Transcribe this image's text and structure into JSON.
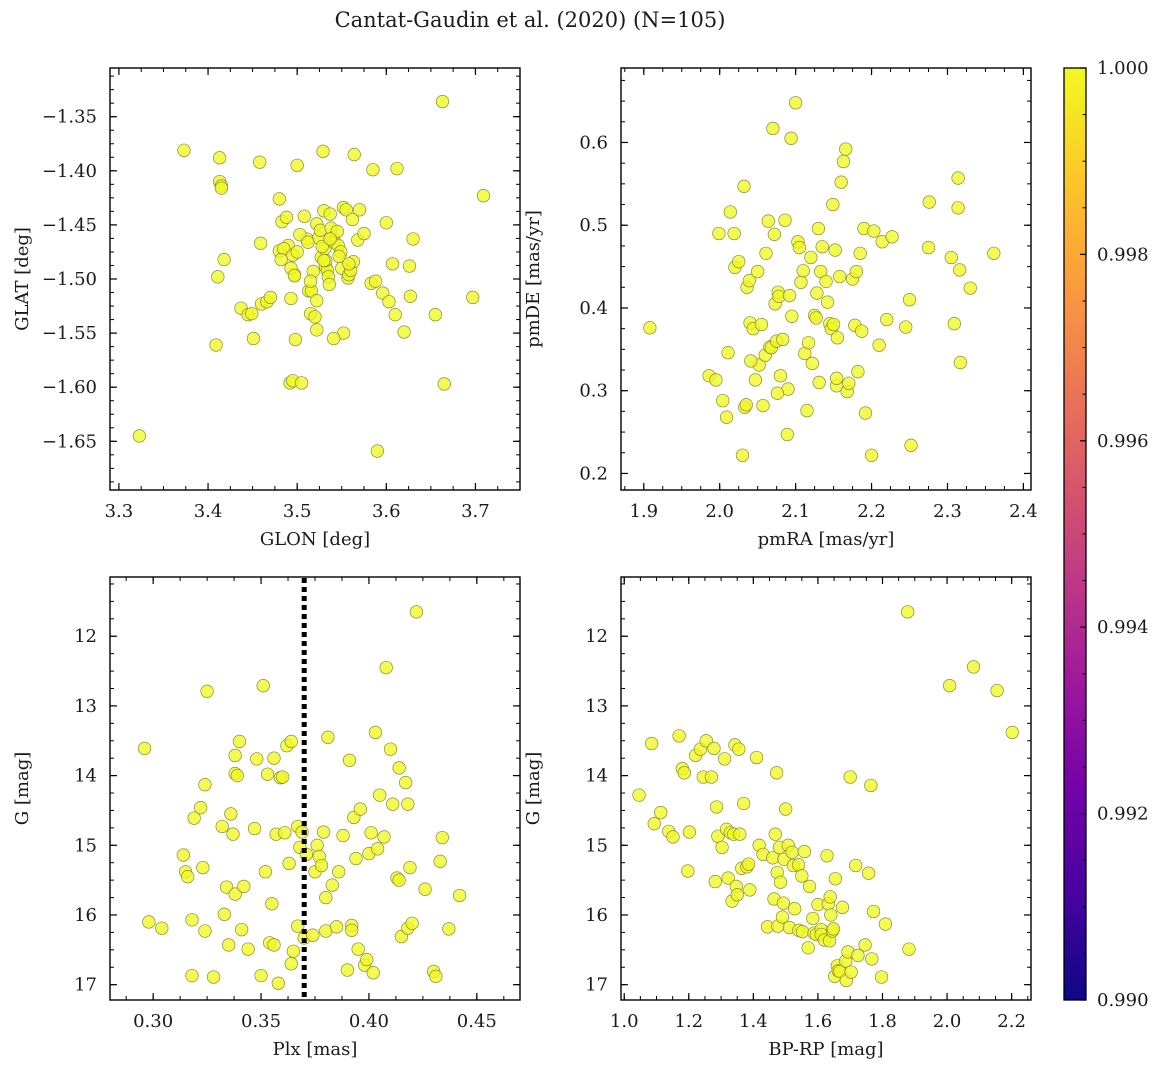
{
  "figure": {
    "title": "Cantat-Gaudin et al. (2020) (N=105)"
  },
  "colors": {
    "point_fill": "#f0f921",
    "point_edge": "#8a8a3a",
    "axis": "#000000",
    "vline": "#000000",
    "colormap": [
      "#0d0887",
      "#46039f",
      "#7201a8",
      "#9c179e",
      "#bd3786",
      "#d8576b",
      "#ed7953",
      "#fb9f3a",
      "#fdca26",
      "#f0f921"
    ]
  },
  "colorbar": {
    "range": [
      0.99,
      1.0
    ],
    "ticks": [
      0.99,
      0.992,
      0.994,
      0.996,
      0.998,
      1.0
    ],
    "tick_labels": [
      "0.990",
      "0.992",
      "0.994",
      "0.996",
      "0.998",
      "1.000"
    ]
  },
  "chart_data": [
    {
      "type": "scatter",
      "id": "glon_glat",
      "xlabel": "GLON [deg]",
      "ylabel": "GLAT [deg]",
      "xlim": [
        3.29,
        3.75
      ],
      "ylim": [
        -1.695,
        -1.305
      ],
      "xticks": [
        3.3,
        3.4,
        3.5,
        3.6,
        3.7
      ],
      "xtick_labels": [
        "3.3",
        "3.4",
        "3.5",
        "3.6",
        "3.7"
      ],
      "yticks": [
        -1.35,
        -1.4,
        -1.45,
        -1.5,
        -1.55,
        -1.6,
        -1.65
      ],
      "ytick_labels": [
        "−1.35",
        "−1.40",
        "−1.45",
        "−1.50",
        "−1.55",
        "−1.60",
        "−1.65"
      ],
      "x": [
        3.323,
        3.373,
        3.413,
        3.413,
        3.415,
        3.415,
        3.411,
        3.409,
        3.418,
        3.458,
        3.459,
        3.437,
        3.445,
        3.451,
        3.449,
        3.46,
        3.466,
        3.47,
        3.48,
        3.483,
        3.48,
        3.488,
        3.49,
        3.485,
        3.495,
        3.497,
        3.5,
        3.493,
        3.492,
        3.495,
        3.498,
        3.5,
        3.482,
        3.493,
        3.508,
        3.511,
        3.513,
        3.516,
        3.515,
        3.52,
        3.522,
        3.522,
        3.524,
        3.526,
        3.527,
        3.529,
        3.53,
        3.531,
        3.532,
        3.534,
        3.535,
        3.536,
        3.537,
        3.538,
        3.54,
        3.541,
        3.545,
        3.546,
        3.549,
        3.55,
        3.552,
        3.555,
        3.557,
        3.558,
        3.56,
        3.562,
        3.564,
        3.568,
        3.57,
        3.575,
        3.583,
        3.585,
        3.588,
        3.59,
        3.596,
        3.6,
        3.603,
        3.607,
        3.61,
        3.612,
        3.62,
        3.626,
        3.627,
        3.63,
        3.655,
        3.663,
        3.665,
        3.697,
        3.709,
        3.522,
        3.505,
        3.532,
        3.518,
        3.528,
        3.552,
        3.541,
        3.537,
        3.547,
        3.563,
        3.497,
        3.515,
        3.53,
        3.558,
        3.503,
        3.512
      ],
      "y": [
        -1.645,
        -1.381,
        -1.388,
        -1.41,
        -1.414,
        -1.416,
        -1.498,
        -1.561,
        -1.482,
        -1.392,
        -1.467,
        -1.527,
        -1.533,
        -1.555,
        -1.532,
        -1.523,
        -1.521,
        -1.517,
        -1.426,
        -1.447,
        -1.474,
        -1.443,
        -1.469,
        -1.472,
        -1.478,
        -1.496,
        -1.475,
        -1.518,
        -1.596,
        -1.594,
        -1.556,
        -1.395,
        -1.482,
        -1.49,
        -1.442,
        -1.463,
        -1.511,
        -1.511,
        -1.532,
        -1.535,
        -1.52,
        -1.449,
        -1.462,
        -1.455,
        -1.48,
        -1.382,
        -1.437,
        -1.472,
        -1.489,
        -1.492,
        -1.498,
        -1.505,
        -1.44,
        -1.453,
        -1.462,
        -1.466,
        -1.456,
        -1.469,
        -1.475,
        -1.49,
        -1.434,
        -1.436,
        -1.499,
        -1.496,
        -1.492,
        -1.445,
        -1.385,
        -1.464,
        -1.436,
        -1.458,
        -1.504,
        -1.399,
        -1.502,
        -1.659,
        -1.513,
        -1.448,
        -1.521,
        -1.486,
        -1.533,
        -1.398,
        -1.549,
        -1.488,
        -1.516,
        -1.463,
        -1.533,
        -1.336,
        -1.597,
        -1.517,
        -1.423,
        -1.547,
        -1.596,
        -1.483,
        -1.493,
        -1.47,
        -1.55,
        -1.555,
        -1.463,
        -1.479,
        -1.484,
        -1.497,
        -1.502,
        -1.483,
        -1.486,
        -1.459,
        -1.466
      ]
    },
    {
      "type": "scatter",
      "id": "pmra_pmde",
      "xlabel": "pmRA [mas/yr]",
      "ylabel": "pmDE [mas/yr]",
      "xlim": [
        1.87,
        2.41
      ],
      "ylim": [
        0.18,
        0.69
      ],
      "xticks": [
        1.9,
        2.0,
        2.1,
        2.2,
        2.3,
        2.4
      ],
      "xtick_labels": [
        "1.9",
        "2.0",
        "2.1",
        "2.2",
        "2.3",
        "2.4"
      ],
      "yticks": [
        0.2,
        0.3,
        0.4,
        0.5,
        0.6
      ],
      "ytick_labels": [
        "0.2",
        "0.3",
        "0.4",
        "0.5",
        "0.6"
      ],
      "x": [
        1.908,
        1.986,
        1.995,
        1.999,
        2.004,
        2.011,
        2.009,
        2.014,
        2.019,
        2.02,
        2.025,
        2.03,
        2.032,
        2.033,
        2.035,
        2.036,
        2.039,
        2.04,
        2.044,
        2.047,
        2.05,
        2.052,
        2.055,
        2.057,
        2.06,
        2.061,
        2.064,
        2.066,
        2.068,
        2.07,
        2.072,
        2.073,
        2.075,
        2.077,
        2.078,
        2.08,
        2.083,
        2.086,
        2.089,
        2.09,
        2.092,
        2.095,
        2.1,
        2.103,
        2.105,
        2.107,
        2.11,
        2.112,
        2.115,
        2.117,
        2.12,
        2.122,
        2.125,
        2.128,
        2.13,
        2.131,
        2.133,
        2.135,
        2.14,
        2.142,
        2.145,
        2.147,
        2.149,
        2.15,
        2.152,
        2.154,
        2.155,
        2.158,
        2.16,
        2.163,
        2.166,
        2.168,
        2.17,
        2.175,
        2.178,
        2.18,
        2.182,
        2.185,
        2.187,
        2.19,
        2.192,
        2.2,
        2.203,
        2.21,
        2.214,
        2.22,
        2.227,
        2.245,
        2.25,
        2.252,
        2.275,
        2.276,
        2.305,
        2.309,
        2.314,
        2.316,
        2.317,
        2.314,
        2.33,
        2.361,
        2.127,
        2.094,
        2.076,
        2.154,
        2.041
      ],
      "y": [
        0.376,
        0.318,
        0.313,
        0.49,
        0.288,
        0.346,
        0.268,
        0.516,
        0.49,
        0.449,
        0.456,
        0.222,
        0.547,
        0.28,
        0.283,
        0.425,
        0.433,
        0.382,
        0.375,
        0.313,
        0.444,
        0.331,
        0.38,
        0.282,
        0.343,
        0.466,
        0.505,
        0.353,
        0.352,
        0.617,
        0.489,
        0.405,
        0.36,
        0.419,
        0.414,
        0.318,
        0.362,
        0.506,
        0.247,
        0.302,
        0.415,
        0.39,
        0.648,
        0.48,
        0.473,
        0.431,
        0.445,
        0.345,
        0.276,
        0.358,
        0.461,
        0.333,
        0.391,
        0.418,
        0.496,
        0.31,
        0.444,
        0.474,
        0.432,
        0.407,
        0.381,
        0.375,
        0.525,
        0.38,
        0.47,
        0.306,
        0.364,
        0.438,
        0.552,
        0.577,
        0.592,
        0.299,
        0.309,
        0.435,
        0.379,
        0.444,
        0.323,
        0.466,
        0.372,
        0.496,
        0.273,
        0.222,
        0.493,
        0.355,
        0.48,
        0.386,
        0.486,
        0.377,
        0.41,
        0.234,
        0.473,
        0.528,
        0.461,
        0.381,
        0.557,
        0.446,
        0.334,
        0.521,
        0.424,
        0.466,
        0.388,
        0.605,
        0.297,
        0.315,
        0.336
      ]
    },
    {
      "type": "scatter",
      "id": "plx_g",
      "xlabel": "Plx [mas]",
      "ylabel": "G [mag]",
      "xlim": [
        0.28,
        0.47
      ],
      "ylim": [
        17.22,
        11.15
      ],
      "y_inverted": true,
      "vline_x": 0.37,
      "xticks": [
        0.3,
        0.35,
        0.4,
        0.45
      ],
      "xtick_labels": [
        "0.30",
        "0.35",
        "0.40",
        "0.45"
      ],
      "yticks": [
        12,
        13,
        14,
        15,
        16,
        17
      ],
      "ytick_labels": [
        "12",
        "13",
        "14",
        "15",
        "16",
        "17"
      ],
      "x": [
        0.296,
        0.298,
        0.304,
        0.314,
        0.315,
        0.316,
        0.318,
        0.318,
        0.319,
        0.322,
        0.323,
        0.324,
        0.324,
        0.325,
        0.328,
        0.332,
        0.333,
        0.334,
        0.335,
        0.336,
        0.337,
        0.338,
        0.338,
        0.338,
        0.339,
        0.34,
        0.341,
        0.342,
        0.344,
        0.347,
        0.348,
        0.35,
        0.351,
        0.352,
        0.353,
        0.354,
        0.355,
        0.356,
        0.356,
        0.357,
        0.358,
        0.359,
        0.36,
        0.361,
        0.362,
        0.363,
        0.364,
        0.364,
        0.365,
        0.367,
        0.367,
        0.368,
        0.369,
        0.37,
        0.371,
        0.374,
        0.375,
        0.376,
        0.377,
        0.378,
        0.379,
        0.38,
        0.38,
        0.381,
        0.383,
        0.385,
        0.386,
        0.388,
        0.39,
        0.391,
        0.392,
        0.392,
        0.393,
        0.394,
        0.395,
        0.396,
        0.398,
        0.399,
        0.4,
        0.401,
        0.402,
        0.403,
        0.404,
        0.405,
        0.407,
        0.408,
        0.41,
        0.411,
        0.413,
        0.414,
        0.414,
        0.415,
        0.417,
        0.418,
        0.418,
        0.419,
        0.42,
        0.422,
        0.426,
        0.43,
        0.431,
        0.433,
        0.434,
        0.437,
        0.442
      ],
      "y": [
        13.61,
        16.1,
        16.19,
        15.14,
        15.38,
        15.45,
        16.07,
        16.87,
        14.61,
        14.46,
        15.32,
        16.23,
        14.13,
        12.79,
        16.89,
        14.73,
        15.99,
        15.6,
        16.43,
        14.55,
        14.84,
        13.97,
        15.7,
        13.71,
        14.0,
        13.51,
        16.21,
        15.59,
        16.49,
        14.76,
        13.76,
        16.87,
        12.71,
        15.38,
        13.98,
        16.4,
        15.84,
        13.75,
        16.43,
        14.84,
        16.98,
        14.03,
        14.02,
        14.82,
        13.57,
        15.26,
        13.51,
        16.7,
        16.52,
        14.73,
        16.16,
        15.03,
        14.81,
        16.33,
        15.13,
        16.29,
        15.38,
        15.0,
        15.16,
        15.29,
        14.81,
        16.23,
        15.75,
        13.45,
        15.57,
        16.17,
        15.38,
        14.86,
        16.79,
        13.78,
        16.15,
        16.22,
        14.6,
        15.19,
        16.49,
        14.48,
        16.72,
        16.64,
        15.12,
        14.82,
        16.83,
        13.38,
        15.05,
        14.28,
        14.88,
        12.45,
        13.62,
        14.41,
        15.47,
        13.89,
        15.5,
        16.31,
        14.1,
        14.41,
        16.19,
        15.32,
        16.12,
        11.65,
        15.63,
        16.81,
        16.88,
        15.23,
        14.89,
        16.2,
        15.72
      ]
    },
    {
      "type": "scatter",
      "id": "bprp_g",
      "xlabel": "BP-RP [mag]",
      "ylabel": "G [mag]",
      "xlim": [
        0.99,
        2.26
      ],
      "ylim": [
        17.22,
        11.15
      ],
      "y_inverted": true,
      "xticks": [
        1.0,
        1.2,
        1.4,
        1.6,
        1.8,
        2.0,
        2.2
      ],
      "xtick_labels": [
        "1.0",
        "1.2",
        "1.4",
        "1.6",
        "1.8",
        "2.0",
        "2.2"
      ],
      "yticks": [
        12,
        13,
        14,
        15,
        16,
        17
      ],
      "ytick_labels": [
        "12",
        "13",
        "14",
        "15",
        "16",
        "17"
      ],
      "x": [
        1.046,
        1.085,
        1.093,
        1.113,
        1.138,
        1.151,
        1.17,
        1.18,
        1.186,
        1.197,
        1.202,
        1.221,
        1.236,
        1.245,
        1.254,
        1.27,
        1.278,
        1.282,
        1.286,
        1.29,
        1.303,
        1.311,
        1.317,
        1.322,
        1.329,
        1.334,
        1.339,
        1.343,
        1.347,
        1.35,
        1.355,
        1.358,
        1.364,
        1.37,
        1.38,
        1.385,
        1.389,
        1.41,
        1.418,
        1.43,
        1.444,
        1.46,
        1.464,
        1.468,
        1.472,
        1.474,
        1.476,
        1.481,
        1.484,
        1.49,
        1.493,
        1.495,
        1.5,
        1.508,
        1.512,
        1.52,
        1.524,
        1.528,
        1.54,
        1.541,
        1.55,
        1.552,
        1.558,
        1.57,
        1.574,
        1.584,
        1.588,
        1.595,
        1.6,
        1.61,
        1.61,
        1.62,
        1.628,
        1.632,
        1.636,
        1.638,
        1.64,
        1.645,
        1.648,
        1.652,
        1.654,
        1.66,
        1.663,
        1.668,
        1.676,
        1.686,
        1.688,
        1.693,
        1.7,
        1.703,
        1.717,
        1.724,
        1.746,
        1.757,
        1.764,
        1.767,
        1.772,
        1.797,
        1.809,
        1.882,
        1.878,
        2.008,
        2.082,
        2.155,
        2.202
      ],
      "y": [
        14.28,
        13.54,
        14.69,
        14.53,
        14.8,
        14.88,
        13.43,
        13.9,
        13.96,
        15.37,
        14.81,
        13.71,
        13.62,
        14.02,
        13.5,
        14.02,
        13.61,
        15.52,
        14.45,
        14.87,
        15.03,
        13.76,
        14.77,
        15.47,
        14.82,
        15.8,
        14.84,
        13.56,
        15.59,
        15.71,
        13.62,
        14.84,
        15.33,
        14.4,
        15.31,
        15.27,
        15.64,
        13.74,
        15.0,
        15.13,
        16.17,
        15.18,
        15.77,
        14.84,
        13.96,
        15.39,
        16.16,
        15.03,
        15.53,
        16.03,
        15.83,
        15.2,
        14.48,
        15.0,
        16.18,
        15.1,
        15.29,
        15.91,
        15.28,
        16.22,
        15.44,
        16.24,
        15.09,
        16.47,
        15.59,
        16.05,
        16.26,
        16.28,
        15.85,
        16.21,
        16.28,
        16.36,
        15.15,
        15.84,
        16.37,
        15.74,
        16.0,
        16.23,
        16.2,
        16.88,
        15.48,
        16.73,
        16.8,
        16.81,
        15.89,
        16.66,
        16.94,
        16.53,
        14.02,
        16.82,
        15.29,
        16.58,
        16.43,
        15.4,
        14.14,
        16.63,
        15.95,
        16.89,
        16.13,
        16.49,
        11.65,
        12.71,
        12.44,
        12.78,
        13.38
      ]
    }
  ]
}
